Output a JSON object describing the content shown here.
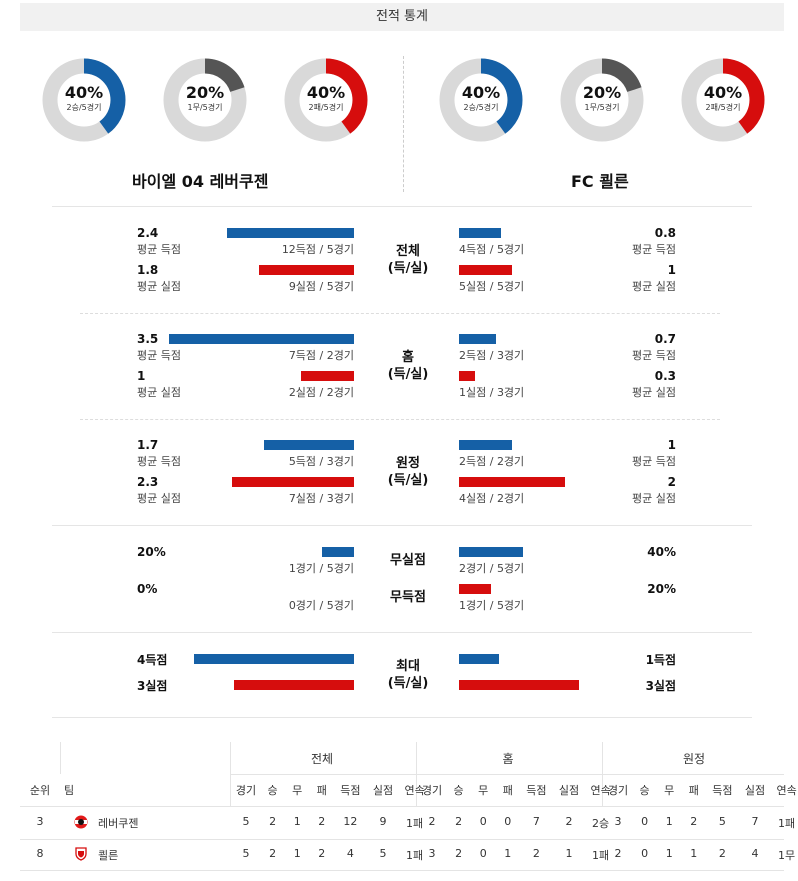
{
  "header": {
    "title": "전적 통계"
  },
  "donuts": [
    {
      "pct": "40%",
      "sub": "2승/5경기",
      "fraction": 0.4,
      "color": "#1560a6"
    },
    {
      "pct": "20%",
      "sub": "1무/5경기",
      "fraction": 0.2,
      "color": "#555555"
    },
    {
      "pct": "40%",
      "sub": "2패/5경기",
      "fraction": 0.4,
      "color": "#d60d0d"
    },
    {
      "pct": "40%",
      "sub": "2승/5경기",
      "fraction": 0.4,
      "color": "#1560a6"
    },
    {
      "pct": "20%",
      "sub": "1무/5경기",
      "fraction": 0.2,
      "color": "#555555"
    },
    {
      "pct": "40%",
      "sub": "2패/5경기",
      "fraction": 0.4,
      "color": "#d60d0d"
    }
  ],
  "teams": {
    "home": "바이엘 04 레버쿠젠",
    "away": "FC 쾰른"
  },
  "sections": {
    "total": {
      "title": "전체",
      "subtitle": "(득/실)",
      "home": {
        "scored_val": "2.4",
        "scored_lbl": "평균 득점",
        "scored_cap": "12득점 / 5경기",
        "conceded_val": "1.8",
        "conceded_lbl": "평균 실점",
        "conceded_cap": "9실점 / 5경기"
      },
      "away": {
        "scored_val": "0.8",
        "scored_lbl": "평균 득점",
        "scored_cap": "4득점 / 5경기",
        "conceded_val": "1",
        "conceded_lbl": "평균 실점",
        "conceded_cap": "5실점 / 5경기"
      }
    },
    "home": {
      "title": "홈",
      "subtitle": "(득/실)",
      "home": {
        "scored_val": "3.5",
        "scored_lbl": "평균 득점",
        "scored_cap": "7득점 / 2경기",
        "conceded_val": "1",
        "conceded_lbl": "평균 실점",
        "conceded_cap": "2실점 / 2경기"
      },
      "away": {
        "scored_val": "0.7",
        "scored_lbl": "평균 득점",
        "scored_cap": "2득점 / 3경기",
        "conceded_val": "0.3",
        "conceded_lbl": "평균 실점",
        "conceded_cap": "1실점 / 3경기"
      }
    },
    "away": {
      "title": "원정",
      "subtitle": "(득/실)",
      "home": {
        "scored_val": "1.7",
        "scored_lbl": "평균 득점",
        "scored_cap": "5득점 / 3경기",
        "conceded_val": "2.3",
        "conceded_lbl": "평균 실점",
        "conceded_cap": "7실점 / 3경기"
      },
      "away": {
        "scored_val": "1",
        "scored_lbl": "평균 득점",
        "scored_cap": "2득점 / 2경기",
        "conceded_val": "2",
        "conceded_lbl": "평균 실점",
        "conceded_cap": "4실점 / 2경기"
      }
    },
    "clean": {
      "title1": "무실점",
      "title2": "무득점",
      "home": {
        "clean_val": "20%",
        "clean_cap": "1경기 / 5경기",
        "noscore_val": "0%",
        "noscore_cap": "0경기 / 5경기"
      },
      "away": {
        "clean_val": "40%",
        "clean_cap": "2경기 / 5경기",
        "noscore_val": "20%",
        "noscore_cap": "1경기 / 5경기"
      }
    },
    "max": {
      "title": "최대",
      "subtitle": "(득/실)",
      "home": {
        "scored": "4득점",
        "conceded": "3실점"
      },
      "away": {
        "scored": "1득점",
        "conceded": "3실점"
      }
    }
  },
  "bar_values": {
    "total": {
      "home_scored": 2.4,
      "home_conceded": 1.8,
      "away_scored": 0.8,
      "away_conceded": 1.0
    },
    "home": {
      "home_scored": 3.5,
      "home_conceded": 1.0,
      "away_scored": 0.7,
      "away_conceded": 0.3
    },
    "away": {
      "home_scored": 1.7,
      "home_conceded": 2.3,
      "away_scored": 1.0,
      "away_conceded": 2.0
    },
    "clean": {
      "home_clean": 20,
      "home_noscore": 0,
      "away_clean": 40,
      "away_noscore": 20
    },
    "max": {
      "home_scored": 4,
      "home_conceded": 3,
      "away_scored": 1,
      "away_conceded": 3
    }
  },
  "table": {
    "groups": [
      "전체",
      "홈",
      "원정"
    ],
    "cols": {
      "rank": "순위",
      "team": "팀"
    },
    "sub": [
      "경기",
      "승",
      "무",
      "패",
      "득점",
      "실점",
      "연속"
    ],
    "rows": [
      {
        "rank": "3",
        "team": "레버쿠젠",
        "icon": "leverkusen-crest-icon",
        "total": [
          "5",
          "2",
          "1",
          "2",
          "12",
          "9",
          "1패"
        ],
        "home": [
          "2",
          "2",
          "0",
          "0",
          "7",
          "2",
          "2승"
        ],
        "away": [
          "3",
          "0",
          "1",
          "2",
          "5",
          "7",
          "1패"
        ]
      },
      {
        "rank": "8",
        "team": "쾰른",
        "icon": "koln-crest-icon",
        "total": [
          "5",
          "2",
          "1",
          "2",
          "4",
          "5",
          "1패"
        ],
        "home": [
          "3",
          "2",
          "0",
          "1",
          "2",
          "1",
          "1패"
        ],
        "away": [
          "2",
          "0",
          "1",
          "1",
          "2",
          "4",
          "1무"
        ]
      }
    ]
  }
}
